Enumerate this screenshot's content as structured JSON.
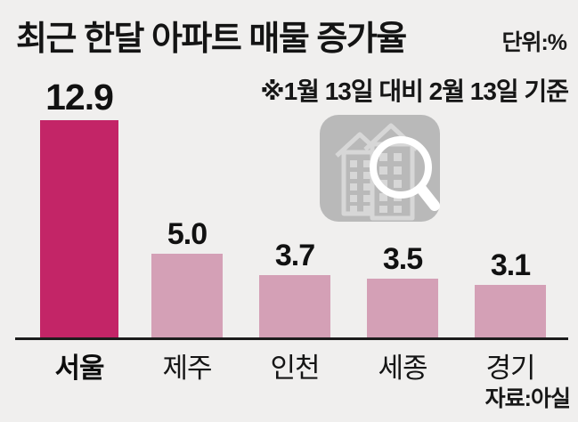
{
  "header": {
    "title": "최근 한달 아파트 매물 증가율",
    "unit_label": "단위:%",
    "subtitle": "※1월 13일 대비 2월 13일 기준"
  },
  "chart_data": {
    "type": "bar",
    "title": "최근 한달 아파트 매물 증가율",
    "unit": "%",
    "categories": [
      "서울",
      "제주",
      "인천",
      "세종",
      "경기"
    ],
    "values": [
      12.9,
      5.0,
      3.7,
      3.5,
      3.1
    ],
    "value_labels": [
      "12.9",
      "5.0",
      "3.7",
      "3.5",
      "3.1"
    ],
    "highlight_index": 0,
    "highlight_color": "#c32567",
    "bar_color": "#d4a0b6",
    "ylim": [
      0,
      13
    ],
    "grid": false,
    "legend": "none",
    "xlabel": "",
    "ylabel": ""
  },
  "footer": {
    "source": "자료:아실"
  },
  "icons": {
    "watermark": "building-magnifier-icon"
  },
  "colors": {
    "background": "#f0efee",
    "text": "#1a1a1a",
    "axis_line": "#1c1c1c",
    "icon_background": "#b9b9b9",
    "icon_lines": "#d7d7d7",
    "icon_glass": "#ffffff"
  }
}
